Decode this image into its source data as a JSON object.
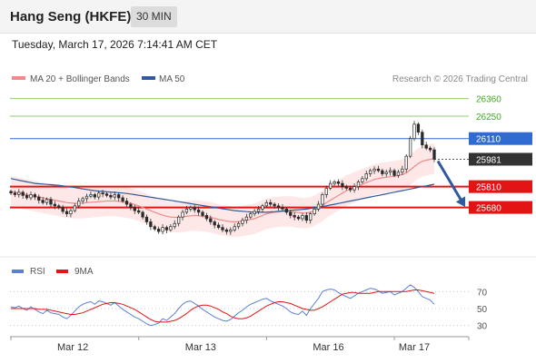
{
  "header": {
    "title": "Hang Seng (HKFE)",
    "interval": "30 MIN"
  },
  "timestamp": "Tuesday, March 17, 2026 7:14:41 AM CET",
  "legend": [
    {
      "label": "MA 20 + Bollinger Bands",
      "color": "#f08a8a"
    },
    {
      "label": "MA 50",
      "color": "#2f5b9e"
    }
  ],
  "credit": "Research © 2026 Trading Central",
  "levels": [
    {
      "value": 26360,
      "label": "26360",
      "style": "target",
      "color": "#8fce68",
      "text_color": "#43a821"
    },
    {
      "value": 26250,
      "label": "26250",
      "style": "target",
      "color": "#8fce68",
      "text_color": "#43a821"
    },
    {
      "value": 26110,
      "label": "26110",
      "style": "pivot",
      "color": "#2f6bd0",
      "text_color": "#ffffff"
    },
    {
      "value": 25981,
      "label": "25981",
      "style": "last",
      "color": "#333333",
      "text_color": "#ffffff"
    },
    {
      "value": 25810,
      "label": "25810",
      "style": "support",
      "color": "#e31414",
      "text_color": "#ffffff"
    },
    {
      "value": 25680,
      "label": "25680",
      "style": "support",
      "color": "#e31414",
      "text_color": "#ffffff"
    }
  ],
  "x_labels": [
    "Mar 12",
    "Mar 13",
    "Mar 16",
    "Mar 17"
  ],
  "rsi": {
    "legend": [
      {
        "label": "RSI",
        "color": "#5b7fd6"
      },
      {
        "label": "9MA",
        "color": "#e31414"
      }
    ],
    "levels": [
      "70",
      "50",
      "30"
    ]
  },
  "chart_data": {
    "type": "candlestick",
    "yrange": [
      25400,
      26420
    ],
    "series": {
      "price": {
        "x": [
          "Mar 12",
          "Mar 12",
          "Mar 12",
          "Mar 12",
          "Mar 12",
          "Mar 12",
          "Mar 12",
          "Mar 12",
          "Mar 12",
          "Mar 12",
          "Mar 12",
          "Mar 12",
          "Mar 12",
          "Mar 12",
          "Mar 12",
          "Mar 12",
          "Mar 12",
          "Mar 12",
          "Mar 12",
          "Mar 12",
          "Mar 12",
          "Mar 12",
          "Mar 12",
          "Mar 12",
          "Mar 12",
          "Mar 12",
          "Mar 12",
          "Mar 12",
          "Mar 12",
          "Mar 12",
          "Mar 12",
          "Mar 12",
          "Mar 13",
          "Mar 13",
          "Mar 13",
          "Mar 13",
          "Mar 13",
          "Mar 13",
          "Mar 13",
          "Mar 13",
          "Mar 13",
          "Mar 13",
          "Mar 13",
          "Mar 13",
          "Mar 13",
          "Mar 13",
          "Mar 13",
          "Mar 13",
          "Mar 13",
          "Mar 13",
          "Mar 13",
          "Mar 13",
          "Mar 13",
          "Mar 13",
          "Mar 13",
          "Mar 13",
          "Mar 13",
          "Mar 13",
          "Mar 13",
          "Mar 13",
          "Mar 13",
          "Mar 13",
          "Mar 13",
          "Mar 13",
          "Mar 16",
          "Mar 16",
          "Mar 16",
          "Mar 16",
          "Mar 16",
          "Mar 16",
          "Mar 16",
          "Mar 16",
          "Mar 16",
          "Mar 16",
          "Mar 16",
          "Mar 16",
          "Mar 16",
          "Mar 16",
          "Mar 16",
          "Mar 16",
          "Mar 16",
          "Mar 16",
          "Mar 16",
          "Mar 16",
          "Mar 16",
          "Mar 16",
          "Mar 16",
          "Mar 16",
          "Mar 16",
          "Mar 16",
          "Mar 16",
          "Mar 16",
          "Mar 16",
          "Mar 16",
          "Mar 16",
          "Mar 16",
          "Mar 17",
          "Mar 17",
          "Mar 17",
          "Mar 17",
          "Mar 17",
          "Mar 17",
          "Mar 17",
          "Mar 17",
          "Mar 17",
          "Mar 17",
          "Mar 17"
        ],
        "close": [
          25770,
          25760,
          25775,
          25755,
          25740,
          25760,
          25745,
          25725,
          25710,
          25730,
          25700,
          25690,
          25680,
          25655,
          25640,
          25660,
          25690,
          25720,
          25735,
          25750,
          25760,
          25745,
          25770,
          25765,
          25755,
          25745,
          25760,
          25740,
          25720,
          25700,
          25680,
          25660,
          25650,
          25620,
          25590,
          25560,
          25545,
          25530,
          25555,
          25540,
          25560,
          25580,
          25620,
          25650,
          25670,
          25680,
          25665,
          25650,
          25630,
          25610,
          25590,
          25570,
          25555,
          25540,
          25530,
          25540,
          25560,
          25580,
          25600,
          25620,
          25640,
          25655,
          25670,
          25690,
          25710,
          25700,
          25690,
          25680,
          25670,
          25650,
          25630,
          25620,
          25610,
          25630,
          25600,
          25640,
          25670,
          25700,
          25760,
          25800,
          25830,
          25840,
          25830,
          25810,
          25800,
          25790,
          25810,
          25840,
          25860,
          25890,
          25910,
          25920,
          25910,
          25890,
          25900,
          25910,
          25880,
          25900,
          25920,
          26000,
          26110,
          26200,
          26150,
          26070,
          26050,
          26040,
          25981
        ]
      },
      "ma20": {
        "close": [
          25780,
          25775,
          25770,
          25765,
          25760,
          25755,
          25750,
          25745,
          25740,
          25735,
          25730,
          25725,
          25720,
          25715,
          25710,
          25708,
          25706,
          25706,
          25707,
          25710,
          25712,
          25714,
          25716,
          25718,
          25720,
          25720,
          25720,
          25718,
          25715,
          25710,
          25705,
          25698,
          25690,
          25680,
          25670,
          25660,
          25650,
          25640,
          25632,
          25625,
          25620,
          25618,
          25618,
          25620,
          25625,
          25628,
          25630,
          25628,
          25625,
          25622,
          25618,
          25612,
          25605,
          25600,
          25595,
          25592,
          25590,
          25592,
          25595,
          25600,
          25605,
          25610,
          25620,
          25630,
          25640,
          25645,
          25650,
          25652,
          25655,
          25655,
          25655,
          25652,
          25648,
          25645,
          25645,
          25650,
          25660,
          25675,
          25690,
          25710,
          25725,
          25740,
          25755,
          25770,
          25785,
          25795,
          25805,
          25815,
          25825,
          25835,
          25845,
          25855,
          25860,
          25865,
          25868,
          25872,
          25875,
          25880,
          25885,
          25895,
          25915,
          25935,
          25955,
          25968,
          25975,
          25980,
          25985
        ]
      },
      "ma50": {
        "close": [
          25860,
          25855,
          25850,
          25845,
          25840,
          25835,
          25830,
          25828,
          25826,
          25824,
          25822,
          25820,
          25818,
          25815,
          25812,
          25808,
          25804,
          25800,
          25796,
          25792,
          25788,
          25785,
          25782,
          25780,
          25778,
          25776,
          25774,
          25772,
          25770,
          25767,
          25764,
          25760,
          25756,
          25752,
          25748,
          25744,
          25740,
          25736,
          25732,
          25728,
          25724,
          25720,
          25716,
          25712,
          25708,
          25704,
          25700,
          25696,
          25692,
          25688,
          25684,
          25680,
          25676,
          25672,
          25668,
          25664,
          25660,
          25658,
          25656,
          25654,
          25652,
          25650,
          25650,
          25650,
          25650,
          25652,
          25654,
          25656,
          25658,
          25660,
          25662,
          25664,
          25666,
          25668,
          25670,
          25674,
          25678,
          25682,
          25686,
          25690,
          25695,
          25700,
          25705,
          25710,
          25715,
          25720,
          25725,
          25730,
          25735,
          25740,
          25745,
          25750,
          25755,
          25760,
          25765,
          25770,
          25775,
          25780,
          25785,
          25790,
          25795,
          25800,
          25805,
          25810,
          25815,
          25820,
          25825
        ]
      }
    },
    "rsi": {
      "range": [
        20,
        80
      ],
      "levels": [
        70,
        50,
        30
      ],
      "values": [
        52,
        51,
        53,
        50,
        48,
        52,
        49,
        46,
        44,
        48,
        45,
        44,
        43,
        40,
        38,
        42,
        47,
        52,
        55,
        57,
        58,
        55,
        59,
        58,
        56,
        54,
        57,
        53,
        49,
        46,
        43,
        40,
        38,
        35,
        32,
        30,
        31,
        33,
        38,
        36,
        40,
        44,
        50,
        55,
        58,
        59,
        56,
        53,
        49,
        46,
        43,
        40,
        38,
        36,
        35,
        37,
        41,
        45,
        48,
        52,
        55,
        57,
        59,
        61,
        62,
        59,
        57,
        55,
        53,
        50,
        46,
        44,
        43,
        47,
        42,
        50,
        56,
        62,
        70,
        72,
        73,
        72,
        69,
        66,
        64,
        62,
        65,
        68,
        70,
        72,
        74,
        73,
        71,
        68,
        69,
        70,
        66,
        68,
        70,
        74,
        78,
        75,
        70,
        64,
        62,
        60,
        55
      ],
      "ma9": [
        50,
        50,
        50,
        50,
        50,
        50,
        50,
        49,
        49,
        49,
        48,
        47,
        46,
        45,
        44,
        43,
        43,
        44,
        45,
        47,
        49,
        51,
        53,
        55,
        56,
        57,
        57,
        56,
        55,
        53,
        51,
        49,
        46,
        43,
        40,
        37,
        35,
        34,
        34,
        34,
        35,
        36,
        38,
        41,
        44,
        48,
        51,
        53,
        54,
        54,
        53,
        51,
        49,
        46,
        44,
        41,
        39,
        38,
        38,
        39,
        41,
        44,
        47,
        50,
        53,
        55,
        57,
        58,
        58,
        57,
        56,
        54,
        52,
        50,
        49,
        48,
        48,
        50,
        52,
        55,
        58,
        61,
        64,
        67,
        68,
        69,
        69,
        68,
        68,
        68,
        68,
        69,
        70,
        70,
        70,
        70,
        70,
        70,
        70,
        70,
        71,
        72,
        72,
        71,
        70,
        69,
        68
      ]
    },
    "projection": {
      "from": 25981,
      "to": 25680
    }
  }
}
